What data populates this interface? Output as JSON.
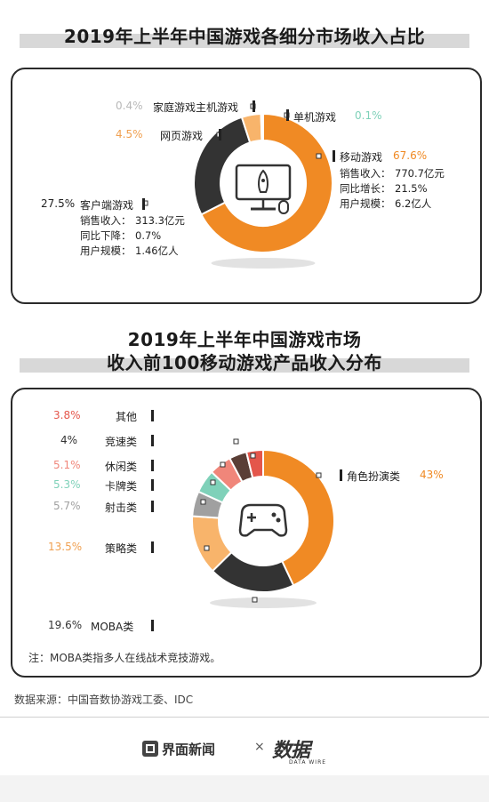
{
  "colors": {
    "orange": "#f08a24",
    "dark": "#333333",
    "light_orange": "#f8b46b",
    "red": "#e4564b",
    "salmon": "#f0867a",
    "brown": "#5a3e36",
    "teal": "#7fd1b9",
    "gray": "#a0a0a0",
    "pale": "#c9c9c9"
  },
  "watermark": "数据",
  "chart1": {
    "title": "2019年上半年中国游戏各细分市场收入占比",
    "icon": "monitor-rocket-icon",
    "labels": {
      "console": {
        "name": "家庭游戏主机游戏",
        "pct": "0.4%"
      },
      "single": {
        "name": "单机游戏",
        "pct": "0.1%"
      },
      "web": {
        "name": "网页游戏",
        "pct": "4.5%"
      },
      "mobile": {
        "name": "移动游戏",
        "pct": "67.6%",
        "d1": "销售收入：",
        "v1": "770.7亿元",
        "d2": "同比增长：",
        "v2": "21.5%",
        "d3": "用户规模：",
        "v3": "6.2亿人"
      },
      "client": {
        "name": "客户端游戏",
        "pct": "27.5%",
        "d1": "销售收入：",
        "v1": "313.3亿元",
        "d2": "同比下降：",
        "v2": "0.7%",
        "d3": "用户规模：",
        "v3": "1.46亿人"
      }
    }
  },
  "chart2": {
    "title_line1": "2019年上半年中国游戏市场",
    "title_line2": "收入前100移动游戏产品收入分布",
    "icon": "gamepad-icon",
    "labels": {
      "other": {
        "name": "其他",
        "pct": "3.8%"
      },
      "racing": {
        "name": "竞速类",
        "pct": "4%"
      },
      "casual": {
        "name": "休闲类",
        "pct": "5.1%"
      },
      "card": {
        "name": "卡牌类",
        "pct": "5.3%"
      },
      "shooter": {
        "name": "射击类",
        "pct": "5.7%"
      },
      "strategy": {
        "name": "策略类",
        "pct": "13.5%"
      },
      "moba": {
        "name": "MOBA类",
        "pct": "19.6%"
      },
      "rpg": {
        "name": "角色扮演类",
        "pct": "43%"
      }
    },
    "note": "注：MOBA类指多人在线战术竞技游戏。"
  },
  "source": "数据来源：中国音数协游戏工委、IDC",
  "footer": {
    "brand1": "界面新闻",
    "separator": "×",
    "brand2": "数据",
    "brand2_sub": "DATA WIRE"
  },
  "chart_data": [
    {
      "type": "pie",
      "title": "2019年上半年中国游戏各细分市场收入占比",
      "categories": [
        "移动游戏",
        "客户端游戏",
        "网页游戏",
        "家庭游戏主机游戏",
        "单机游戏"
      ],
      "values": [
        67.6,
        27.5,
        4.5,
        0.4,
        0.1
      ],
      "colors": [
        "#f08a24",
        "#333333",
        "#f8b46b",
        "#c9c9c9",
        "#7fd1b9"
      ]
    },
    {
      "type": "pie",
      "title": "2019年上半年中国游戏市场 收入前100移动游戏产品收入分布",
      "categories": [
        "角色扮演类",
        "MOBA类",
        "策略类",
        "射击类",
        "卡牌类",
        "休闲类",
        "竞速类",
        "其他"
      ],
      "values": [
        43,
        19.6,
        13.5,
        5.7,
        5.3,
        5.1,
        4,
        3.8
      ],
      "colors": [
        "#f08a24",
        "#333333",
        "#f8b46b",
        "#a0a0a0",
        "#7fd1b9",
        "#f0867a",
        "#5a3e36",
        "#e4564b"
      ]
    }
  ]
}
